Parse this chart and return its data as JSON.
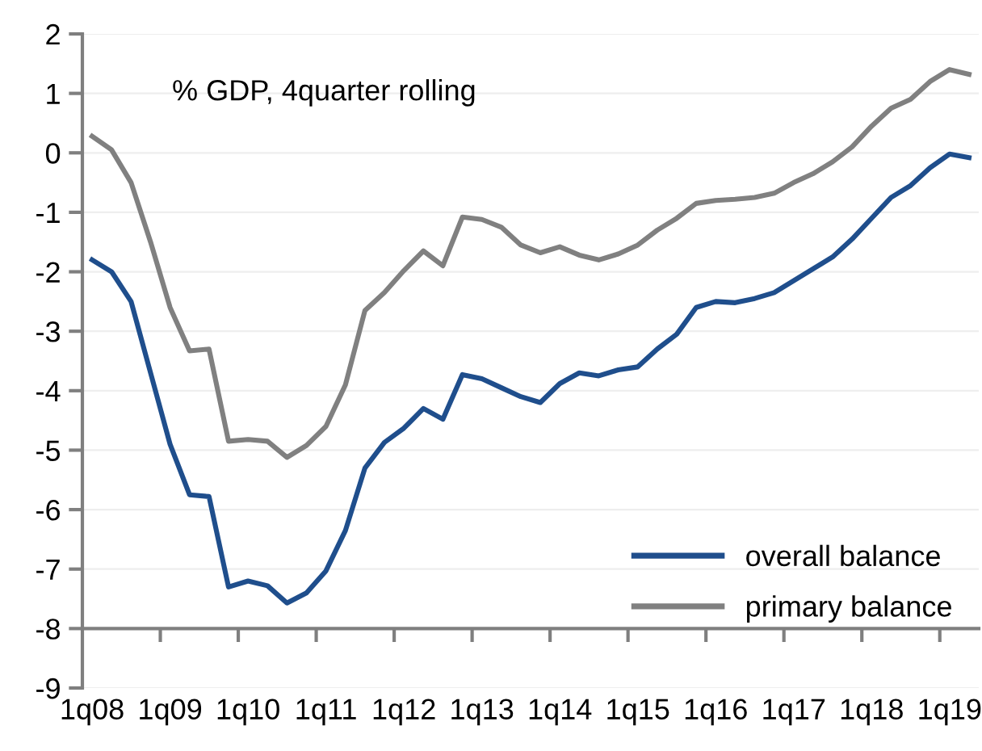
{
  "chart_data": {
    "type": "line",
    "categories": [
      "1q08",
      null,
      null,
      null,
      "1q09",
      null,
      null,
      null,
      "1q10",
      null,
      null,
      null,
      "1q11",
      null,
      null,
      null,
      "1q12",
      null,
      null,
      null,
      "1q13",
      null,
      null,
      null,
      "1q14",
      null,
      null,
      null,
      "1q15",
      null,
      null,
      null,
      "1q16",
      null,
      null,
      null,
      "1q17",
      null,
      null,
      null,
      "1q18",
      null,
      null,
      null,
      "1q19",
      null
    ],
    "series": [
      {
        "name": "overall balance",
        "color": "#1f4e8c",
        "values": [
          -1.8,
          -2.0,
          -2.5,
          -3.7,
          -4.9,
          -5.75,
          -5.78,
          -7.3,
          -7.2,
          -7.28,
          -7.57,
          -7.4,
          -7.03,
          -6.35,
          -5.3,
          -4.87,
          -4.63,
          -4.3,
          -4.48,
          -3.73,
          -3.8,
          -3.95,
          -4.1,
          -4.2,
          -3.88,
          -3.7,
          -3.75,
          -3.65,
          -3.6,
          -3.3,
          -3.05,
          -2.6,
          -2.5,
          -2.52,
          -2.45,
          -2.35,
          -2.15,
          -1.95,
          -1.75,
          -1.45,
          -1.1,
          -0.75,
          -0.55,
          -0.25,
          -0.02,
          -0.08
        ]
      },
      {
        "name": "primary balance",
        "color": "#808080",
        "values": [
          0.28,
          0.05,
          -0.5,
          -1.5,
          -2.6,
          -3.33,
          -3.3,
          -4.85,
          -4.82,
          -4.85,
          -5.12,
          -4.92,
          -4.6,
          -3.9,
          -2.65,
          -2.35,
          -1.98,
          -1.65,
          -1.9,
          -1.08,
          -1.12,
          -1.25,
          -1.55,
          -1.68,
          -1.58,
          -1.72,
          -1.8,
          -1.7,
          -1.55,
          -1.3,
          -1.1,
          -0.85,
          -0.8,
          -0.78,
          -0.75,
          -0.68,
          -0.5,
          -0.35,
          -0.15,
          0.1,
          0.45,
          0.75,
          0.9,
          1.2,
          1.4,
          1.32
        ]
      }
    ],
    "ylim": [
      -9,
      2
    ],
    "yticks": [
      -9,
      -8,
      -7,
      -6,
      -5,
      -4,
      -3,
      -2,
      -1,
      0,
      1,
      2
    ],
    "ref_lines": [
      {
        "axis": "y",
        "value": -8,
        "color": "#7f7f7f"
      }
    ],
    "grid": "y",
    "legend": "bottom right",
    "marker": "none",
    "line_style": "solid",
    "annotations": [
      "% GDP, 4quarter rolling"
    ]
  }
}
